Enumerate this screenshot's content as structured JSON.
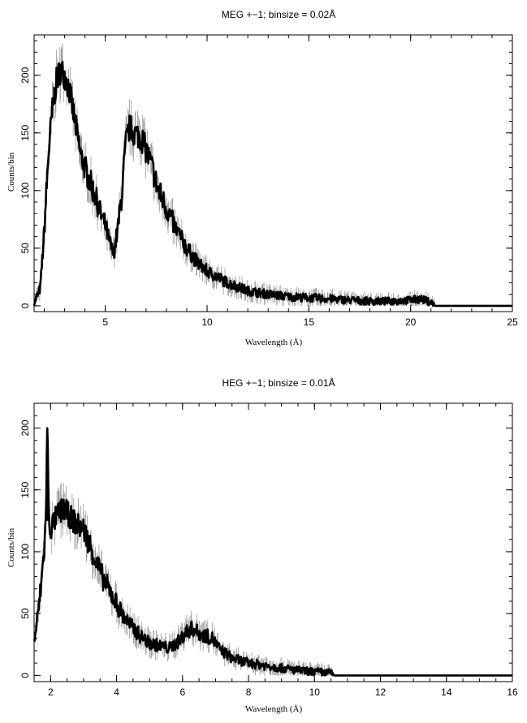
{
  "chart_data": [
    {
      "type": "line",
      "title": "MEG +−1; binsize = 0.02Å",
      "xlabel": "Wavelength (Å)",
      "ylabel": "Counts/bin",
      "xlim": [
        1.5,
        25
      ],
      "ylim": [
        -5,
        235
      ],
      "xticks": [
        5,
        10,
        15,
        20,
        25
      ],
      "yticks": [
        0,
        50,
        100,
        150,
        200
      ],
      "x_minor_step": 1,
      "y_minor_step": 10,
      "grid": false,
      "series": [
        {
          "x": [
            1.5,
            1.8,
            2.0,
            2.2,
            2.4,
            2.6,
            2.8,
            3.0,
            3.2,
            3.4,
            3.6,
            3.8,
            4.0,
            4.2,
            4.5,
            4.8,
            5.0,
            5.2,
            5.4,
            5.6,
            5.8,
            6.0,
            6.2,
            6.4,
            6.6,
            6.8,
            7.0,
            7.3,
            7.6,
            8.0,
            8.5,
            9.0,
            9.5,
            10.0,
            10.5,
            11.0,
            12.0,
            13.0,
            14.0,
            15.0,
            16.0,
            17.0,
            18.0,
            19.0,
            20.0,
            20.5,
            21.0,
            21.2,
            22.0,
            23.0,
            24.0,
            25.0
          ],
          "y": [
            2,
            15,
            65,
            130,
            170,
            195,
            205,
            200,
            190,
            170,
            150,
            130,
            120,
            110,
            95,
            78,
            70,
            55,
            45,
            65,
            95,
            140,
            155,
            150,
            148,
            145,
            135,
            120,
            100,
            85,
            65,
            50,
            38,
            30,
            25,
            20,
            13,
            10,
            8,
            7,
            6,
            5,
            4,
            4,
            5,
            6,
            3,
            0,
            0,
            0,
            0,
            0
          ],
          "error": 12
        }
      ]
    },
    {
      "type": "line",
      "title": "HEG +−1; binsize = 0.01Å",
      "xlabel": "Wavelength (Å)",
      "ylabel": "Counts/bin",
      "xlim": [
        1.5,
        16
      ],
      "ylim": [
        -5,
        220
      ],
      "xticks": [
        2,
        4,
        6,
        8,
        10,
        12,
        14,
        16
      ],
      "yticks": [
        0,
        50,
        100,
        150,
        200
      ],
      "x_minor_step": 0.5,
      "y_minor_step": 10,
      "grid": false,
      "series": [
        {
          "x": [
            1.5,
            1.6,
            1.7,
            1.8,
            1.85,
            1.9,
            1.95,
            2.0,
            2.2,
            2.4,
            2.6,
            2.8,
            3.0,
            3.2,
            3.4,
            3.6,
            3.8,
            4.0,
            4.2,
            4.5,
            4.8,
            5.0,
            5.3,
            5.6,
            5.9,
            6.1,
            6.3,
            6.5,
            6.7,
            6.9,
            7.1,
            7.5,
            8.0,
            8.5,
            9.0,
            9.5,
            10.0,
            10.5,
            10.6,
            12.0,
            14.0,
            16.0
          ],
          "y": [
            28,
            45,
            70,
            100,
            120,
            200,
            125,
            118,
            130,
            135,
            128,
            122,
            118,
            105,
            90,
            78,
            68,
            58,
            48,
            38,
            30,
            26,
            24,
            22,
            28,
            35,
            38,
            34,
            32,
            30,
            22,
            14,
            10,
            8,
            6,
            4,
            3,
            2,
            0,
            0,
            0,
            0
          ],
          "error": 10,
          "spikes": [
            {
              "x": 1.9,
              "y": 200
            }
          ]
        }
      ]
    }
  ]
}
